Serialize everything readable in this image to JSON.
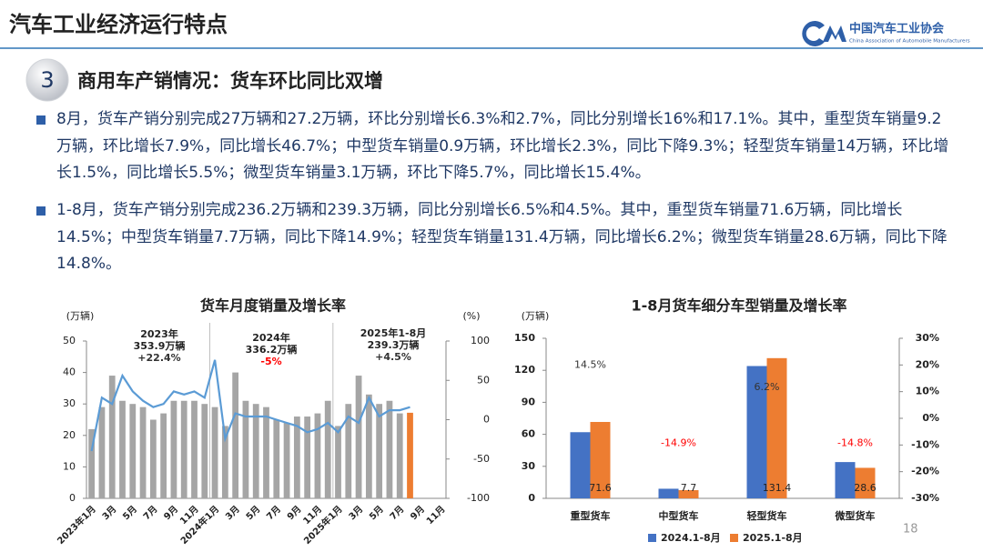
{
  "header": {
    "title": "汽车工业经济运行特点"
  },
  "logo": {
    "name": "中国汽车工业协会",
    "subtitle": "China Association of Automobile Manufacturers"
  },
  "section": {
    "number": "3",
    "title": "商用车产销情况：货车环比同比双增"
  },
  "bullets": [
    "8月，货车产销分别完成27万辆和27.2万辆，环比分别增长6.3%和2.7%，同比分别增长16%和17.1%。其中，重型货车销量9.2万辆，环比增长7.9%，同比增长46.7%；中型货车销量0.9万辆，环比增长2.3%，同比下降9.3%；轻型货车销量14万辆，环比增长1.5%，同比增长5.5%；微型货车销量3.1万辆，环比下降5.7%，同比增长15.4%。",
    "1-8月，货车产销分别完成236.2万辆和239.3万辆，同比分别增长6.5%和4.5%。其中，重型货车销量71.6万辆，同比增长14.5%；中型货车销量7.7万辆，同比下降14.9%；轻型货车销量131.4万辆，同比增长6.2%；微型货车销量28.6万辆，同比下降14.8%。"
  ],
  "page_number": "18",
  "chart_data": [
    {
      "type": "combo",
      "title": "货车月度销量及增长率",
      "y_unit": "(万辆)",
      "y2_unit": "(%)",
      "categories": [
        "2023年1月",
        null,
        "3月",
        null,
        "5月",
        null,
        "7月",
        null,
        "9月",
        null,
        "11月",
        null,
        "2024年1月",
        null,
        "3月",
        null,
        "5月",
        null,
        "7月",
        null,
        "9月",
        null,
        "11月",
        null,
        "2025年1月",
        null,
        "3月",
        null,
        "5月",
        null,
        "7月",
        null,
        "9月",
        null,
        "11月"
      ],
      "ylim": [
        0,
        50
      ],
      "yticks": [
        0,
        10,
        20,
        30,
        40,
        50
      ],
      "y2lim": [
        -100,
        100
      ],
      "y2ticks": [
        -100,
        -50,
        0,
        50,
        100
      ],
      "series": [
        {
          "type": "bar",
          "color": "#a5a5a5",
          "values": [
            22,
            29,
            39,
            31,
            30,
            29,
            25,
            27,
            31,
            31,
            31,
            30,
            29,
            23,
            40,
            31,
            30,
            29,
            25,
            24,
            26,
            26,
            27,
            31,
            23,
            30,
            39,
            33,
            30,
            31,
            27,
            null,
            null,
            null,
            null
          ]
        },
        {
          "type": "bar",
          "color": "#ed7d31",
          "values": [
            null,
            null,
            null,
            null,
            null,
            null,
            null,
            null,
            null,
            null,
            null,
            null,
            null,
            null,
            null,
            null,
            null,
            null,
            null,
            null,
            null,
            null,
            null,
            null,
            null,
            null,
            null,
            null,
            null,
            null,
            null,
            27.2,
            null,
            null,
            null
          ]
        },
        {
          "type": "line",
          "axis": "y2",
          "color": "#5b9bd5",
          "values": [
            -40,
            28,
            20,
            56,
            36,
            24,
            16,
            20,
            36,
            32,
            36,
            28,
            76,
            -24,
            8,
            4,
            4,
            4,
            0,
            -4,
            -8,
            -16,
            -12,
            -4,
            -16,
            4,
            -4,
            28,
            4,
            12,
            12,
            16,
            null,
            null,
            null
          ]
        }
      ],
      "annotations": [
        {
          "year": "2023年",
          "total": "353.9万辆",
          "growth": "+22.4%",
          "growth_color": "#333333"
        },
        {
          "year": "2024年",
          "total": "336.2万辆",
          "growth": "-5%",
          "growth_color": "#ff0000"
        },
        {
          "year": "2025年1-8月",
          "total": "239.3万辆",
          "growth": "+4.5%",
          "growth_color": "#333333"
        }
      ]
    },
    {
      "type": "grouped_bar",
      "title": "1-8月货车细分车型销量及增长率",
      "y_unit": "(万辆)",
      "categories": [
        "重型货车",
        "中型货车",
        "轻型货车",
        "微型货车"
      ],
      "ylim": [
        0,
        150
      ],
      "yticks": [
        0,
        30,
        60,
        90,
        120,
        150
      ],
      "y2lim": [
        -30,
        30
      ],
      "y2ticks": [
        {
          "value": -30,
          "label": "-30%"
        },
        {
          "value": -20,
          "label": "-20%"
        },
        {
          "value": -10,
          "label": "-10%"
        },
        {
          "value": 0,
          "label": "0%"
        },
        {
          "value": 10,
          "label": "10%"
        },
        {
          "value": 20,
          "label": "20%"
        },
        {
          "value": 30,
          "label": "30%"
        }
      ],
      "series": [
        {
          "name": "2024.1-8月",
          "color": "#4472c4",
          "values": [
            62,
            9,
            124,
            34
          ]
        },
        {
          "name": "2025.1-8月",
          "color": "#ed7d31",
          "values": [
            71.6,
            7.7,
            131.4,
            28.6
          ],
          "value_labels": [
            "71.6",
            "7.7",
            "131.4",
            "28.6"
          ]
        }
      ],
      "growth": {
        "axis": "y2",
        "values": [
          14.5,
          -14.9,
          6.2,
          -14.8
        ],
        "value_labels": [
          "14.5%",
          "-14.9%",
          "6.2%",
          "-14.8%"
        ],
        "color": "#333333",
        "negative_color": "#ff0000"
      },
      "legend": "bottom"
    }
  ]
}
